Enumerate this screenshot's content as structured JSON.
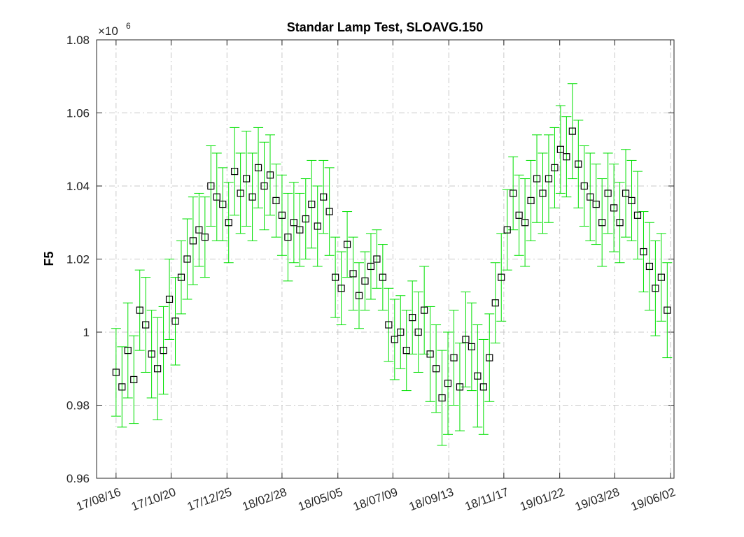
{
  "chart_data": {
    "type": "errorbar",
    "title": "Standar Lamp Test, SLOAVG.150",
    "ylabel": "F5",
    "y_multiplier": {
      "base": "×10",
      "exponent": "6"
    },
    "x": [
      "17/08/16",
      "17/08/23",
      "17/08/30",
      "17/09/06",
      "17/09/13",
      "17/09/20",
      "17/09/27",
      "17/10/04",
      "17/10/11",
      "17/10/18",
      "17/10/25",
      "17/11/01",
      "17/11/08",
      "17/11/15",
      "17/11/22",
      "17/11/29",
      "17/12/06",
      "17/12/13",
      "17/12/20",
      "17/12/27",
      "18/01/03",
      "18/01/10",
      "18/01/17",
      "18/01/24",
      "18/01/31",
      "18/02/07",
      "18/02/14",
      "18/02/21",
      "18/02/28",
      "18/03/07",
      "18/03/14",
      "18/03/21",
      "18/03/28",
      "18/04/04",
      "18/04/11",
      "18/04/18",
      "18/04/25",
      "18/05/02",
      "18/05/09",
      "18/05/16",
      "18/05/23",
      "18/05/30",
      "18/06/06",
      "18/06/13",
      "18/06/20",
      "18/06/27",
      "18/07/04",
      "18/07/11",
      "18/07/18",
      "18/07/25",
      "18/08/01",
      "18/08/08",
      "18/08/15",
      "18/08/22",
      "18/08/29",
      "18/09/05",
      "18/09/12",
      "18/09/19",
      "18/09/26",
      "18/10/03",
      "18/10/10",
      "18/10/17",
      "18/10/24",
      "18/10/31",
      "18/11/07",
      "18/11/14",
      "18/11/21",
      "18/11/28",
      "18/12/05",
      "18/12/12",
      "18/12/19",
      "18/12/26",
      "19/01/02",
      "19/01/09",
      "19/01/16",
      "19/01/23",
      "19/01/30",
      "19/02/06",
      "19/02/13",
      "19/02/20",
      "19/02/27",
      "19/03/06",
      "19/03/13",
      "19/03/20",
      "19/03/27",
      "19/04/03",
      "19/04/10",
      "19/04/17",
      "19/04/24",
      "19/05/01",
      "19/05/08",
      "19/05/15",
      "19/05/22",
      "19/05/29"
    ],
    "values": [
      0.989,
      0.985,
      0.995,
      0.987,
      1.006,
      1.002,
      0.994,
      0.99,
      0.995,
      1.009,
      1.003,
      1.015,
      1.02,
      1.025,
      1.028,
      1.026,
      1.04,
      1.037,
      1.035,
      1.03,
      1.044,
      1.038,
      1.042,
      1.037,
      1.045,
      1.04,
      1.043,
      1.036,
      1.032,
      1.026,
      1.03,
      1.028,
      1.031,
      1.035,
      1.029,
      1.037,
      1.033,
      1.015,
      1.012,
      1.024,
      1.016,
      1.01,
      1.014,
      1.018,
      1.02,
      1.015,
      1.002,
      0.998,
      1.0,
      0.995,
      1.004,
      1.0,
      1.006,
      0.994,
      0.99,
      0.982,
      0.986,
      0.993,
      0.985,
      0.998,
      0.996,
      0.988,
      0.985,
      0.993,
      1.008,
      1.015,
      1.028,
      1.038,
      1.032,
      1.03,
      1.036,
      1.042,
      1.038,
      1.042,
      1.045,
      1.05,
      1.048,
      1.055,
      1.046,
      1.04,
      1.037,
      1.035,
      1.03,
      1.038,
      1.034,
      1.03,
      1.038,
      1.036,
      1.032,
      1.022,
      1.018,
      1.012,
      1.015,
      1.006
    ],
    "errors": [
      0.012,
      0.011,
      0.013,
      0.012,
      0.011,
      0.013,
      0.012,
      0.014,
      0.012,
      0.011,
      0.012,
      0.01,
      0.011,
      0.012,
      0.01,
      0.011,
      0.011,
      0.012,
      0.01,
      0.011,
      0.012,
      0.011,
      0.013,
      0.012,
      0.011,
      0.012,
      0.011,
      0.01,
      0.011,
      0.012,
      0.011,
      0.01,
      0.011,
      0.012,
      0.011,
      0.01,
      0.012,
      0.011,
      0.01,
      0.009,
      0.01,
      0.009,
      0.008,
      0.009,
      0.008,
      0.009,
      0.01,
      0.011,
      0.01,
      0.011,
      0.01,
      0.011,
      0.012,
      0.013,
      0.012,
      0.013,
      0.014,
      0.013,
      0.012,
      0.013,
      0.012,
      0.014,
      0.013,
      0.012,
      0.011,
      0.012,
      0.011,
      0.01,
      0.011,
      0.012,
      0.011,
      0.012,
      0.011,
      0.012,
      0.011,
      0.012,
      0.011,
      0.013,
      0.012,
      0.011,
      0.012,
      0.011,
      0.012,
      0.011,
      0.012,
      0.011,
      0.012,
      0.011,
      0.012,
      0.011,
      0.012,
      0.013,
      0.012,
      0.013
    ],
    "error_color": "#00e000",
    "marker_color": "#000000",
    "xlim": [
      "17/07/24",
      "19/06/06"
    ],
    "xticks": [
      "17/08/16",
      "17/10/20",
      "17/12/25",
      "18/02/28",
      "18/05/05",
      "18/07/09",
      "18/09/13",
      "18/11/17",
      "19/01/22",
      "19/03/28",
      "19/06/02"
    ],
    "ylim": [
      0.96,
      1.08
    ],
    "yticks": [
      0.96,
      0.98,
      1,
      1.02,
      1.04,
      1.06,
      1.08
    ],
    "grid": true
  }
}
